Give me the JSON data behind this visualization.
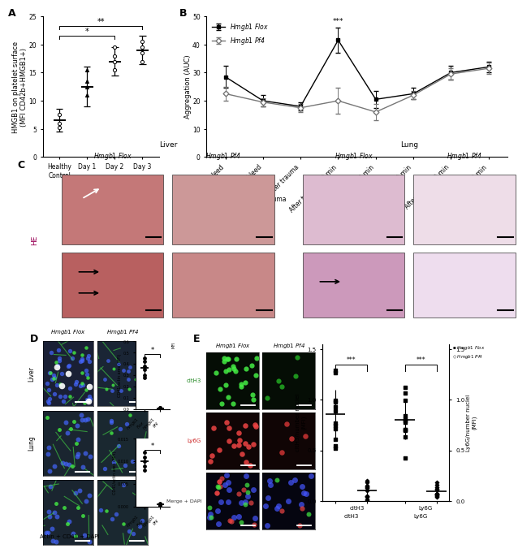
{
  "panel_A": {
    "categories": [
      "Healthy\nControl",
      "Day 1",
      "Day 2",
      "Day 3"
    ],
    "means": [
      6.5,
      12.5,
      17.0,
      19.0
    ],
    "errors": [
      2.0,
      3.5,
      2.5,
      2.5
    ],
    "points": [
      [
        5.2,
        6.0,
        7.5
      ],
      [
        11.0,
        12.5,
        13.5,
        15.5
      ],
      [
        15.5,
        17.0,
        18.0,
        19.5
      ],
      [
        17.0,
        18.5,
        19.5,
        20.5
      ]
    ],
    "markers": [
      "o",
      "^",
      "o",
      "o"
    ],
    "ylabel": "HMGB1 on platelet surface\n(MFI CD42b+HMGB1+)",
    "ylim": [
      0,
      25
    ],
    "yticks": [
      0,
      5,
      10,
      15,
      20,
      25
    ]
  },
  "panel_B": {
    "x_labels": [
      "Before bleed",
      "After bleed",
      "After trauma",
      "After trauma 30 min",
      "After trauma 60 min",
      "After trauma 90 min",
      "After resuc. 60 min",
      "After resuc. 360 min"
    ],
    "flox_means": [
      28.5,
      20.0,
      18.0,
      41.5,
      20.5,
      22.5,
      30.0,
      32.0
    ],
    "flox_errors": [
      4.0,
      2.0,
      1.5,
      4.5,
      3.0,
      2.0,
      2.5,
      2.0
    ],
    "pf4_means": [
      22.5,
      19.5,
      17.5,
      20.0,
      16.0,
      22.0,
      29.5,
      31.5
    ],
    "pf4_errors": [
      2.5,
      1.5,
      1.5,
      4.5,
      3.0,
      1.5,
      2.0,
      2.0
    ],
    "ylabel": "Aggregation (AUC)",
    "ylim": [
      0,
      50
    ],
    "yticks": [
      0,
      10,
      20,
      30,
      40,
      50
    ]
  },
  "background_color": "#ffffff",
  "panel_label_fontsize": 9,
  "axis_fontsize": 6.5,
  "tick_fontsize": 5.5
}
